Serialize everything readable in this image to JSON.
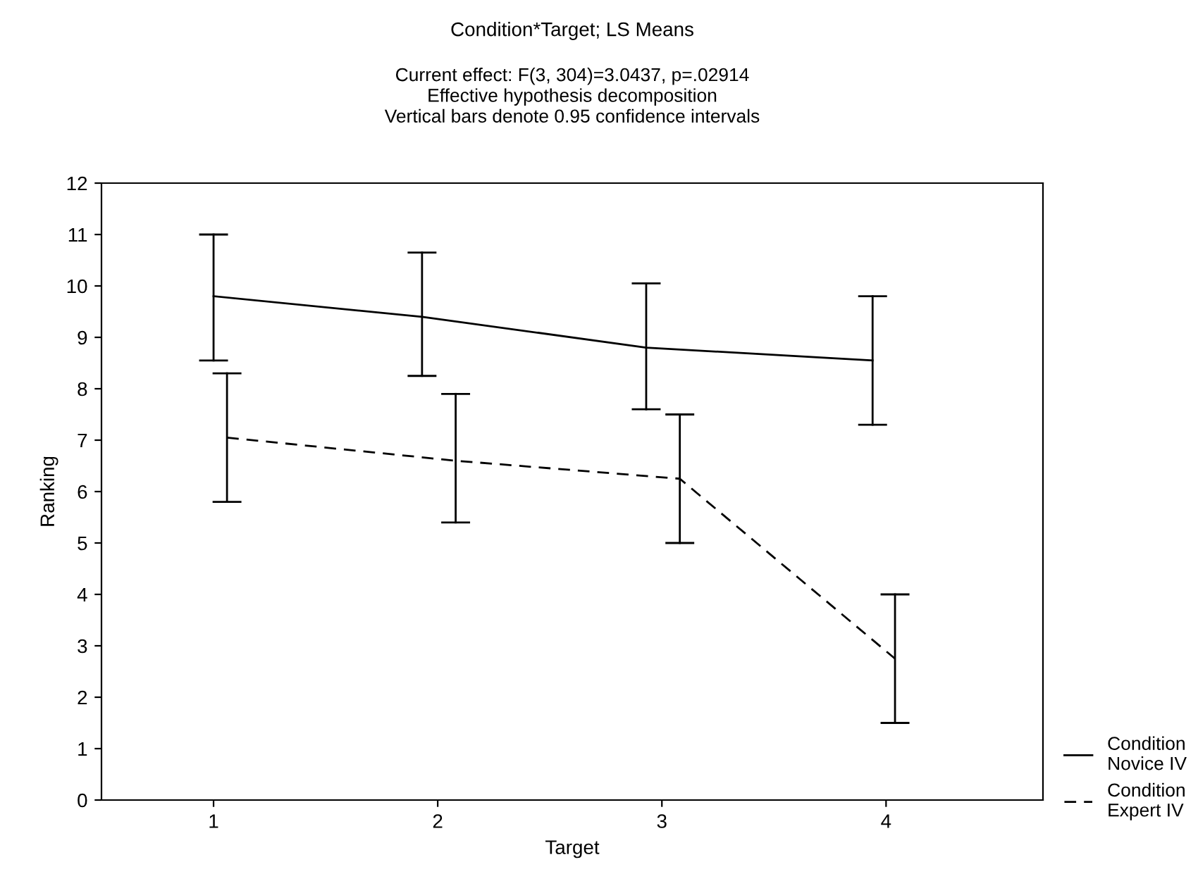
{
  "chart_data": {
    "type": "line",
    "title": "Condition*Target; LS Means",
    "subtitle": "Current effect: F(3, 304)=3.0437, p=.02914\nEffective hypothesis decomposition\nVertical bars denote 0.95 confidence intervals",
    "xlabel": "Target",
    "ylabel": "Ranking",
    "series": [
      {
        "name": "Condition\nNovice IV",
        "color": "#000000",
        "line_style": "solid",
        "x": [
          1.0,
          1.93,
          2.93,
          3.94
        ],
        "values": [
          9.8,
          9.4,
          8.8,
          8.55
        ],
        "errors": [
          [
            8.55,
            11.0
          ],
          [
            8.25,
            10.65
          ],
          [
            7.6,
            10.05
          ],
          [
            7.3,
            9.8
          ]
        ]
      },
      {
        "name": "Condition\nExpert IV",
        "color": "#000000",
        "line_style": "dashed",
        "x": [
          1.06,
          2.08,
          3.08,
          4.04
        ],
        "values": [
          7.05,
          6.6,
          6.25,
          2.75
        ],
        "errors": [
          [
            5.8,
            8.3
          ],
          [
            5.4,
            7.9
          ],
          [
            5.0,
            7.5
          ],
          [
            1.5,
            4.0
          ]
        ]
      }
    ],
    "xlim": [
      0.5,
      4.7
    ],
    "xticks": [
      1,
      2,
      3,
      4
    ],
    "ylim": [
      0,
      12
    ],
    "yticks": [
      0,
      1,
      2,
      3,
      4,
      5,
      6,
      7,
      8,
      9,
      10,
      11,
      12
    ],
    "grid": false,
    "legend": "bottom right",
    "marker": "none"
  }
}
